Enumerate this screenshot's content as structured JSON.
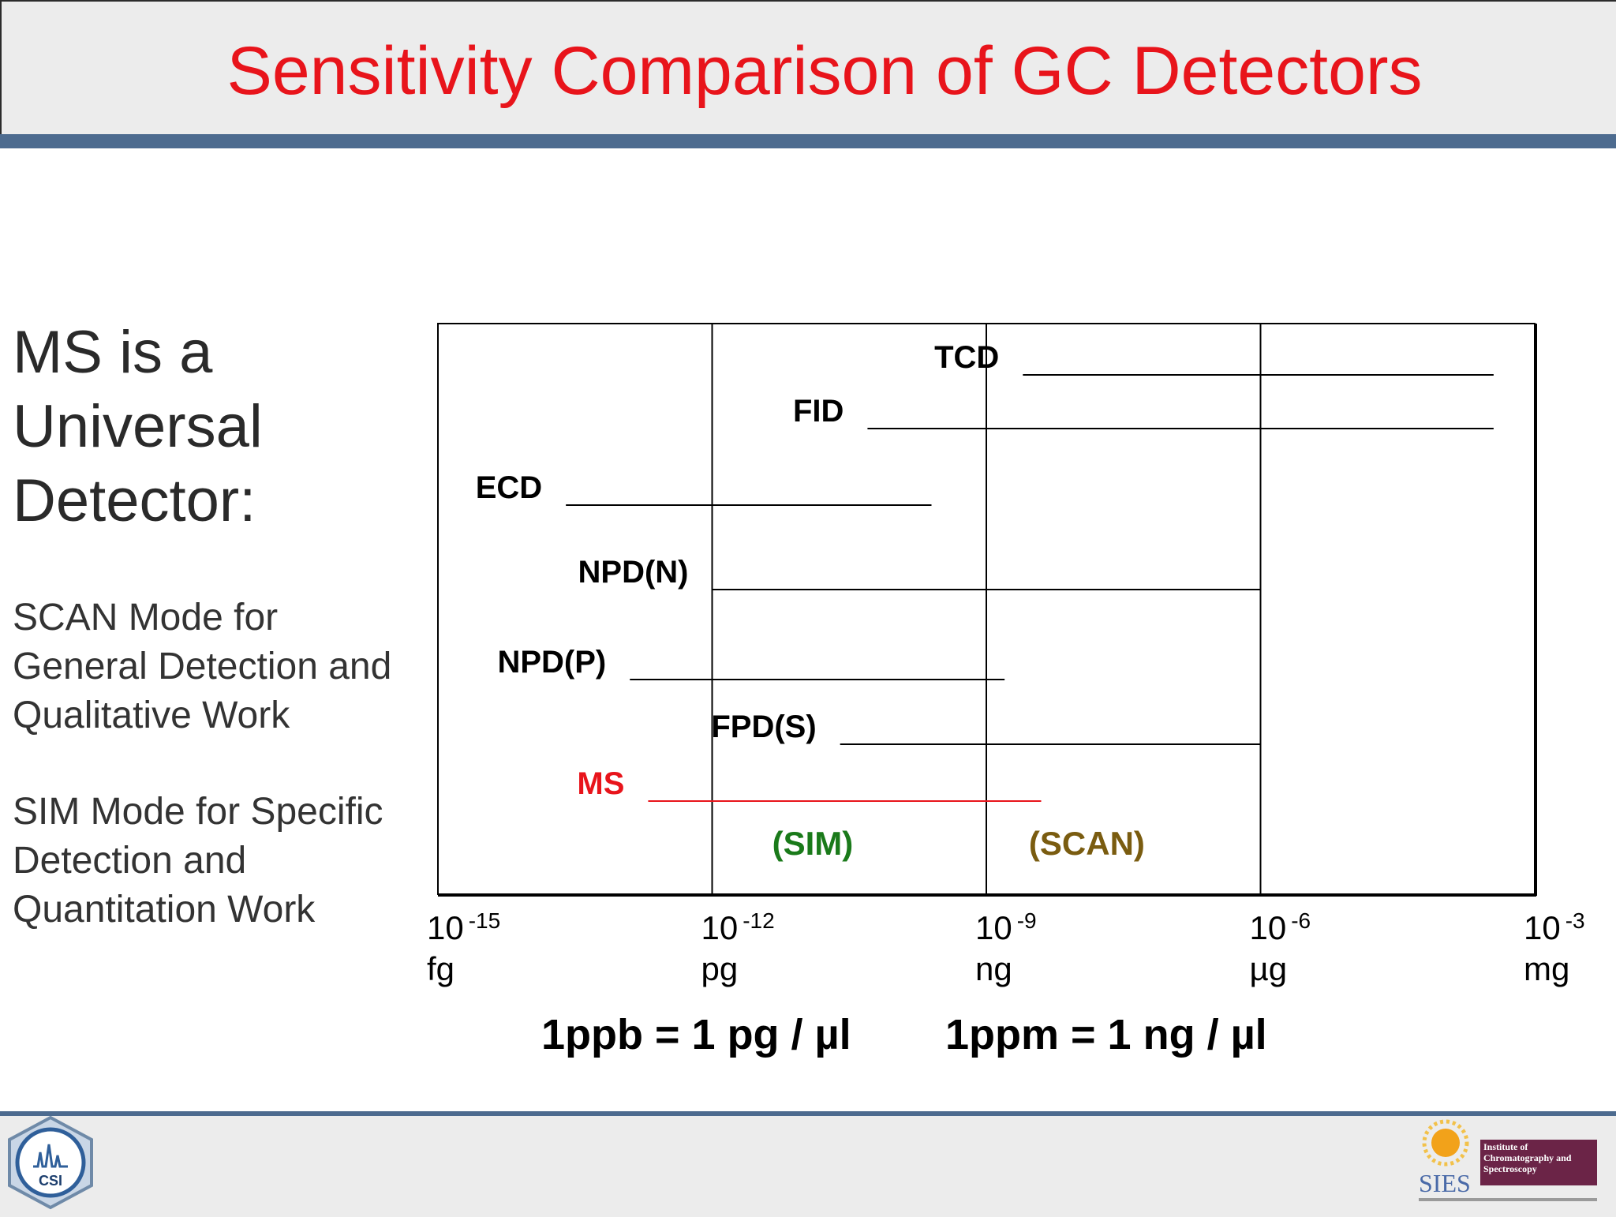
{
  "title": "Sensitivity Comparison of GC Detectors",
  "left_panel": {
    "heading": "MS is a Universal Detector:",
    "scan_text": "SCAN Mode for General Detection and Qualitative Work",
    "sim_text": "SIM Mode for Specific Detection and Quantitation Work"
  },
  "equations": {
    "ppb": "1ppb = 1 pg / µl",
    "ppm": "1ppm = 1 ng / µl"
  },
  "logos": {
    "csi_text": "CSI",
    "sies_text": "SIES",
    "institute_text": "Institute of Chromatography and Spectroscopy"
  },
  "colors": {
    "title": "#e8141b",
    "ms": "#e8141b",
    "sim": "#1a7a1a",
    "scan": "#7a5c10",
    "header_bar": "#4d6b8f"
  },
  "chart_data": {
    "type": "range",
    "x_scale": "log10",
    "xlim": [
      -15,
      -3
    ],
    "x_ticks": [
      {
        "exp": -15,
        "base": "10",
        "sup": "-15",
        "unit": "fg"
      },
      {
        "exp": -12,
        "base": "10",
        "sup": "-12",
        "unit": "pg"
      },
      {
        "exp": -9,
        "base": "10",
        "sup": "-9",
        "unit": "ng"
      },
      {
        "exp": -6,
        "base": "10",
        "sup": "-6",
        "unit": "µg"
      },
      {
        "exp": -3,
        "base": "10",
        "sup": "-3",
        "unit": "mg"
      }
    ],
    "grid_lines_at": [
      -12,
      -9,
      -6
    ],
    "series": [
      {
        "name": "TCD",
        "range": [
          -8.6,
          -3.45
        ],
        "color": "#000000"
      },
      {
        "name": "FID",
        "range": [
          -10.3,
          -3.45
        ],
        "color": "#000000"
      },
      {
        "name": "ECD",
        "range": [
          -13.6,
          -9.6
        ],
        "color": "#000000"
      },
      {
        "name": "NPD(N)",
        "range": [
          -12.0,
          -6.0
        ],
        "color": "#000000"
      },
      {
        "name": "NPD(P)",
        "range": [
          -12.9,
          -8.8
        ],
        "color": "#000000"
      },
      {
        "name": "FPD(S)",
        "range": [
          -10.6,
          -6.0
        ],
        "color": "#000000"
      },
      {
        "name": "MS",
        "range": [
          -12.7,
          -8.4
        ],
        "color": "#e8141b"
      }
    ],
    "annotations": [
      {
        "text": "(SIM)",
        "x": -10.9,
        "color": "#1a7a1a"
      },
      {
        "text": "(SCAN)",
        "x": -7.9,
        "color": "#7a5c10"
      }
    ]
  }
}
